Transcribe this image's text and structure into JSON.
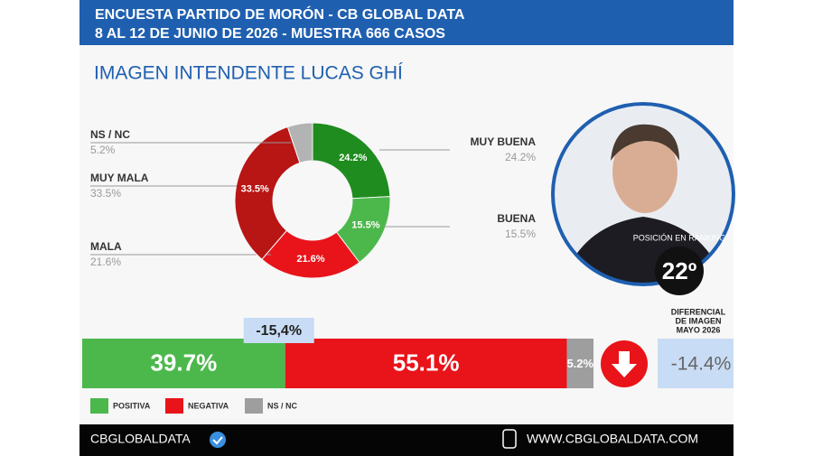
{
  "header": {
    "line1": "ENCUESTA PARTIDO DE MORÓN - CB GLOBAL DATA",
    "line2": "8 AL 12 DE JUNIO DE 2026 - MUESTRA 666 CASOS"
  },
  "chart_data": [
    {
      "type": "donut",
      "title": "IMAGEN INTENDENTE  LUCAS GHÍ",
      "categories": [
        "MUY BUENA",
        "BUENA",
        "MALA",
        "MUY MALA",
        "NS / NC"
      ],
      "values": [
        24.2,
        15.5,
        21.6,
        33.5,
        5.2
      ],
      "value_labels": [
        "24.2%",
        "15.5%",
        "21.6%",
        "33.5%",
        "5.2%"
      ],
      "colors": [
        "#1e8c1e",
        "#4cb84c",
        "#e8141a",
        "#b81515",
        "#b3b3b3"
      ]
    },
    {
      "type": "stacked-bar",
      "categories": [
        "POSITIVA",
        "NEGATIVA",
        "NS / NC"
      ],
      "values": [
        39.7,
        55.1,
        5.2
      ],
      "value_labels": [
        "39.7%",
        "55.1%",
        "5.2%"
      ],
      "colors": [
        "#4cb84c",
        "#e8141a",
        "#9e9e9e"
      ],
      "annotation": "-15,4%"
    }
  ],
  "ranking": {
    "label": "POSICIÓN EN RANKING",
    "position": "22º"
  },
  "differential": {
    "title": [
      "DIFERENCIAL",
      "DE IMAGEN",
      "MAYO 2026"
    ],
    "value": "-14.4%"
  },
  "footer": {
    "brand": "CBGLOBALDATA",
    "site": "WWW.CBGLOBALDATA.COM"
  }
}
